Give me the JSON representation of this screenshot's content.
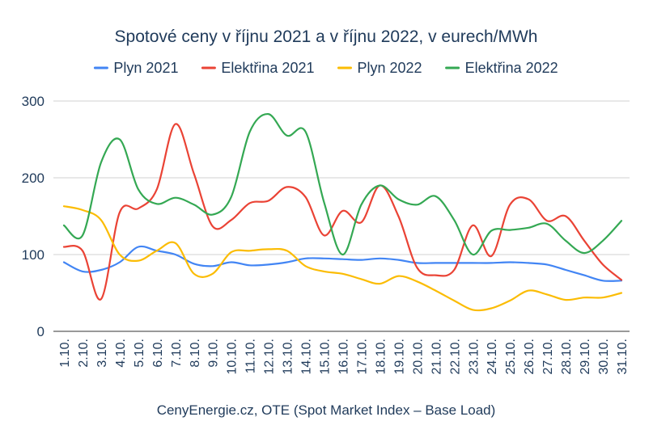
{
  "chart_data": {
    "type": "line",
    "title": "Spotové ceny v říjnu 2021 a v říjnu 2022, v eurech/MWh",
    "xlabel": "CenyEnergie.cz, OTE (Spot Market Index – Base Load)",
    "ylabel": "",
    "ylim": [
      0,
      300
    ],
    "yticks": [
      "0",
      "100",
      "200",
      "300"
    ],
    "grid": true,
    "legend_position": "top",
    "categories": [
      "1.10.",
      "2.10.",
      "3.10.",
      "4.10.",
      "5.10.",
      "6.10.",
      "7.10.",
      "8.10.",
      "9.10.",
      "10.10.",
      "11.10.",
      "12.10.",
      "13.10.",
      "14.10.",
      "15.10.",
      "16.10.",
      "17.10.",
      "18.10.",
      "19.10.",
      "20.10.",
      "21.10.",
      "22.10.",
      "23.10.",
      "24.10.",
      "25.10.",
      "26.10.",
      "27.10.",
      "28.10.",
      "29.10.",
      "30.10.",
      "31.10."
    ],
    "series": [
      {
        "name": "Plyn 2021",
        "color": "#4285f4",
        "values": [
          90,
          78,
          80,
          90,
          110,
          105,
          100,
          88,
          85,
          90,
          86,
          87,
          90,
          95,
          95,
          94,
          93,
          95,
          93,
          89,
          89,
          89,
          89,
          89,
          90,
          89,
          87,
          80,
          73,
          66,
          66
        ]
      },
      {
        "name": "Elektřina 2021",
        "color": "#ea4335",
        "values": [
          110,
          105,
          42,
          155,
          160,
          185,
          270,
          205,
          137,
          145,
          167,
          170,
          188,
          175,
          125,
          157,
          142,
          190,
          150,
          83,
          73,
          80,
          138,
          98,
          165,
          172,
          144,
          150,
          118,
          87,
          67
        ]
      },
      {
        "name": "Plyn 2022",
        "color": "#fbbc04",
        "values": [
          163,
          158,
          145,
          100,
          92,
          105,
          115,
          75,
          75,
          103,
          105,
          107,
          105,
          85,
          78,
          75,
          68,
          62,
          72,
          65,
          53,
          40,
          28,
          30,
          40,
          53,
          48,
          41,
          44,
          44,
          50
        ]
      },
      {
        "name": "Elektřina 2022",
        "color": "#34a853",
        "values": [
          138,
          125,
          220,
          250,
          185,
          166,
          174,
          165,
          152,
          175,
          260,
          283,
          255,
          260,
          168,
          100,
          165,
          190,
          172,
          165,
          176,
          145,
          100,
          131,
          132,
          135,
          140,
          118,
          102,
          118,
          144
        ]
      }
    ]
  }
}
